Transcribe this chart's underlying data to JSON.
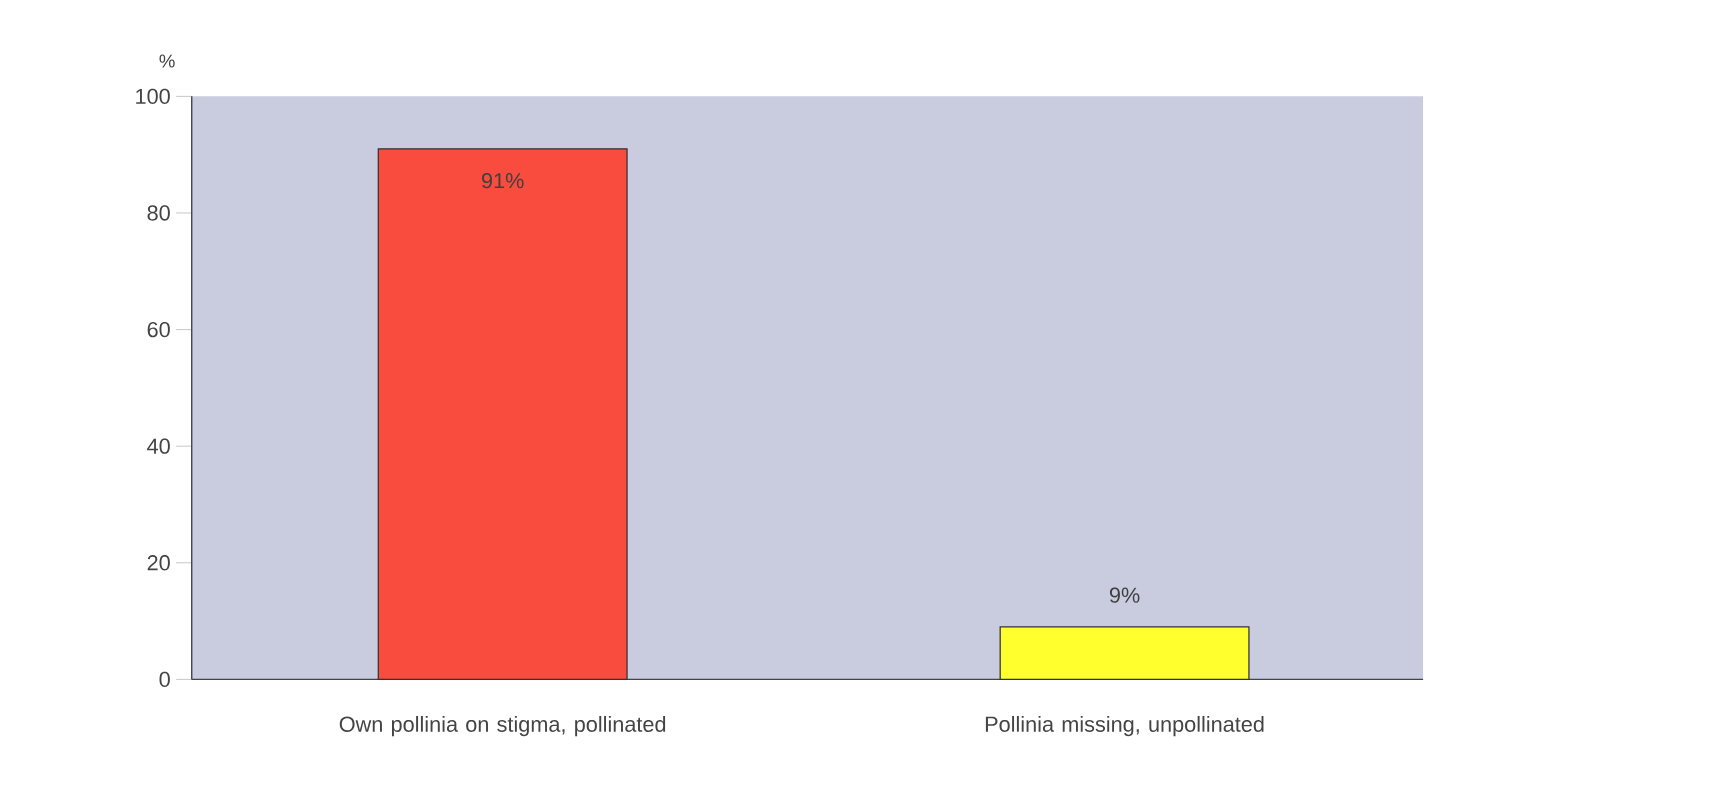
{
  "chart_data": {
    "type": "bar",
    "ylabel": "%",
    "categories": [
      "Own pollinia on stigma, pollinated",
      "Pollinia missing, unpollinated"
    ],
    "values": [
      91,
      9
    ],
    "colors": [
      "#f94b3e",
      "#ffff2e"
    ],
    "value_labels": [
      "91%",
      "9%"
    ],
    "ylim": [
      0,
      100
    ],
    "yticks": [
      0,
      20,
      40,
      60,
      80,
      100
    ]
  }
}
